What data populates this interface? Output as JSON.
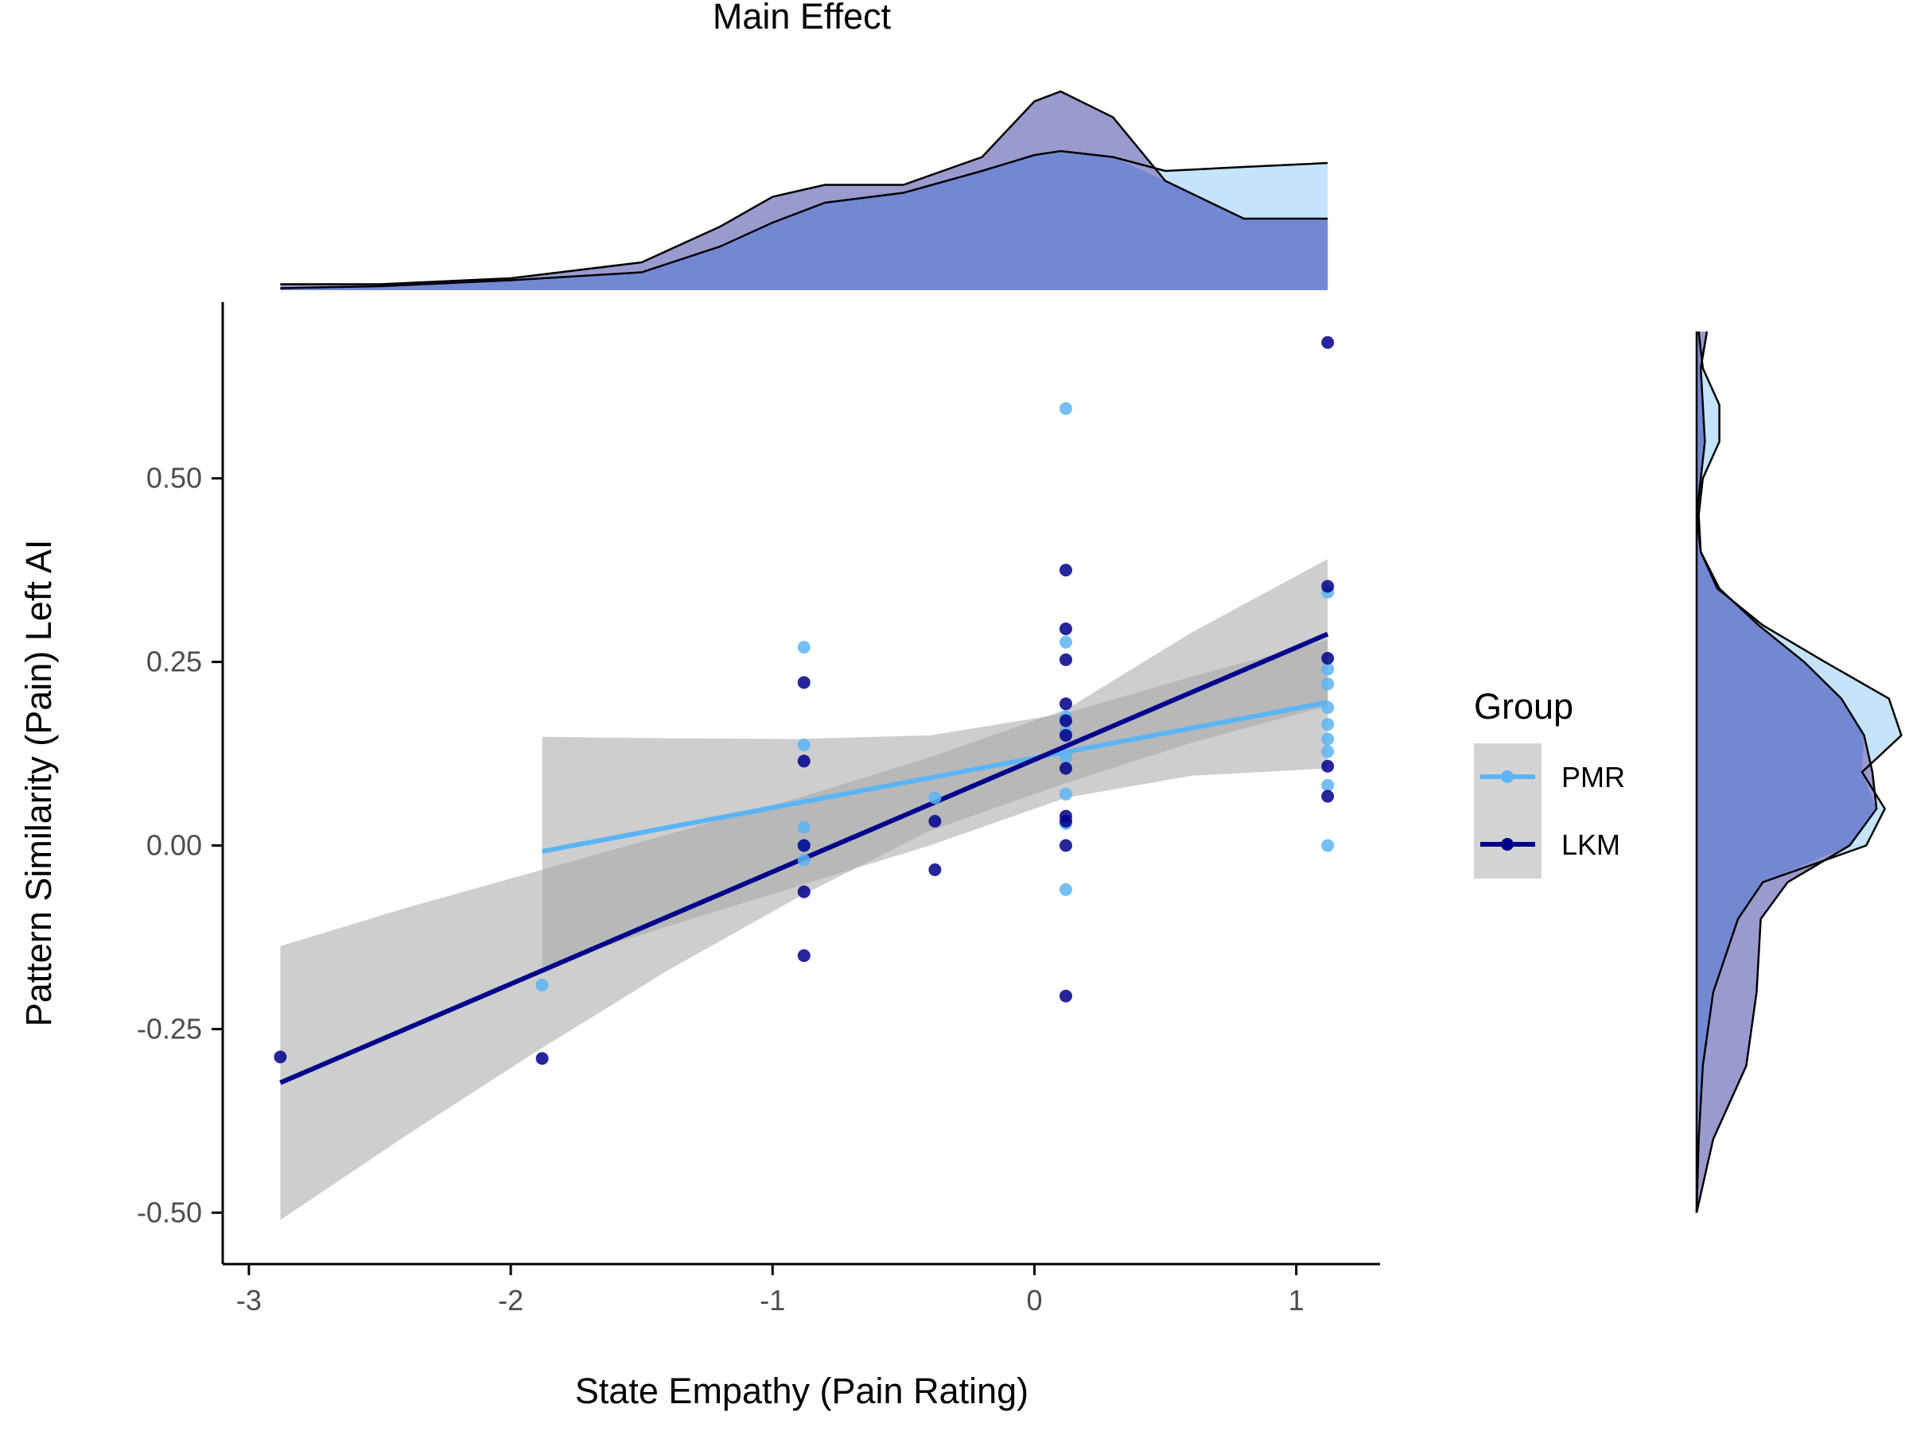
{
  "chart_data": {
    "type": "scatter",
    "title": "Main Effect",
    "xlabel": "State Empathy (Pain Rating)",
    "ylabel": "Pattern Similarity (Pain) Left AI",
    "xlim": [
      -3.1,
      1.32
    ],
    "ylim": [
      -0.57,
      0.74
    ],
    "xticks": [
      -3,
      -2,
      -1,
      0,
      1
    ],
    "xtick_labels": [
      "-3",
      "-2",
      "-1",
      "0",
      "1"
    ],
    "yticks": [
      -0.5,
      -0.25,
      0,
      0.25,
      0.5
    ],
    "ytick_labels": [
      "-0.50",
      "-0.25",
      "0.00",
      "0.25",
      "0.50"
    ],
    "grid": false,
    "legend": {
      "title": "Group",
      "placement": "right",
      "entries": [
        {
          "name": "PMR",
          "color": "#5BB4F5"
        },
        {
          "name": "LKM",
          "color": "#00008B"
        }
      ]
    },
    "series": [
      {
        "name": "PMR",
        "color": "#5BB4F5",
        "points": [
          [
            -1.88,
            -0.19
          ],
          [
            -0.88,
            0.27
          ],
          [
            -0.88,
            0.137
          ],
          [
            -0.88,
            0.025
          ],
          [
            -0.88,
            0.0
          ],
          [
            -0.88,
            -0.02
          ],
          [
            -0.38,
            0.065
          ],
          [
            0.12,
            0.595
          ],
          [
            0.12,
            0.277
          ],
          [
            0.12,
            0.175
          ],
          [
            0.12,
            0.155
          ],
          [
            0.12,
            0.12
          ],
          [
            0.12,
            0.07
          ],
          [
            0.12,
            0.03
          ],
          [
            0.12,
            -0.06
          ],
          [
            1.12,
            0.345
          ],
          [
            1.12,
            0.24
          ],
          [
            1.12,
            0.22
          ],
          [
            1.12,
            0.188
          ],
          [
            1.12,
            0.165
          ],
          [
            1.12,
            0.145
          ],
          [
            1.12,
            0.128
          ],
          [
            1.12,
            0.082
          ],
          [
            1.12,
            0.0
          ]
        ],
        "fit": {
          "x": [
            -1.88,
            1.12
          ],
          "y": [
            -0.008,
            0.195
          ]
        },
        "ribbon": {
          "x": [
            -1.88,
            -1.4,
            -0.9,
            -0.4,
            0.12,
            0.6,
            1.12
          ],
          "lower": [
            -0.165,
            -0.11,
            -0.055,
            0.0,
            0.065,
            0.095,
            0.105
          ],
          "upper": [
            0.148,
            0.146,
            0.145,
            0.15,
            0.18,
            0.23,
            0.28
          ]
        }
      },
      {
        "name": "LKM",
        "color": "#00008B",
        "points": [
          [
            -2.88,
            -0.288
          ],
          [
            -1.88,
            -0.29
          ],
          [
            -0.88,
            0.222
          ],
          [
            -0.88,
            0.115
          ],
          [
            -0.88,
            0.0
          ],
          [
            -0.88,
            -0.063
          ],
          [
            -0.88,
            -0.15
          ],
          [
            -0.38,
            0.033
          ],
          [
            -0.38,
            -0.033
          ],
          [
            0.12,
            0.375
          ],
          [
            0.12,
            0.295
          ],
          [
            0.12,
            0.253
          ],
          [
            0.12,
            0.193
          ],
          [
            0.12,
            0.17
          ],
          [
            0.12,
            0.15
          ],
          [
            0.12,
            0.105
          ],
          [
            0.12,
            0.04
          ],
          [
            0.12,
            0.033
          ],
          [
            0.12,
            0.0
          ],
          [
            0.12,
            -0.205
          ],
          [
            1.12,
            0.685
          ],
          [
            1.12,
            0.353
          ],
          [
            1.12,
            0.255
          ],
          [
            1.12,
            0.108
          ],
          [
            1.12,
            0.067
          ]
        ],
        "fit": {
          "x": [
            -2.88,
            1.12
          ],
          "y": [
            -0.323,
            0.288
          ]
        },
        "ribbon": {
          "x": [
            -2.88,
            -2.4,
            -1.9,
            -1.4,
            -0.9,
            -0.4,
            0.12,
            0.6,
            1.12
          ],
          "lower": [
            -0.51,
            -0.395,
            -0.28,
            -0.17,
            -0.07,
            0.02,
            0.085,
            0.14,
            0.19
          ],
          "upper": [
            -0.137,
            -0.085,
            -0.035,
            0.015,
            0.065,
            0.12,
            0.185,
            0.29,
            0.39
          ]
        }
      }
    ],
    "marginal_x_density": {
      "x": [
        -2.88,
        -2.5,
        -2.0,
        -1.5,
        -1.2,
        -1.0,
        -0.8,
        -0.5,
        -0.2,
        0.0,
        0.1,
        0.3,
        0.5,
        0.8,
        1.12
      ],
      "PMR": [
        0.01,
        0.02,
        0.05,
        0.09,
        0.22,
        0.34,
        0.44,
        0.49,
        0.6,
        0.68,
        0.7,
        0.67,
        0.6,
        0.62,
        0.64
      ],
      "LKM": [
        0.03,
        0.03,
        0.06,
        0.14,
        0.32,
        0.47,
        0.53,
        0.53,
        0.67,
        0.95,
        1.0,
        0.87,
        0.55,
        0.36,
        0.36
      ]
    },
    "marginal_y_density": {
      "y": [
        -0.5,
        -0.4,
        -0.3,
        -0.2,
        -0.1,
        -0.05,
        0.0,
        0.05,
        0.1,
        0.15,
        0.2,
        0.25,
        0.3,
        0.35,
        0.4,
        0.45,
        0.5,
        0.55,
        0.6,
        0.65,
        0.7
      ],
      "PMR": [
        0.0,
        0.01,
        0.03,
        0.08,
        0.2,
        0.32,
        0.82,
        0.91,
        0.8,
        0.99,
        0.93,
        0.62,
        0.32,
        0.1,
        0.02,
        0.01,
        0.03,
        0.11,
        0.11,
        0.03,
        0.01
      ],
      "LKM": [
        0.0,
        0.08,
        0.24,
        0.29,
        0.31,
        0.44,
        0.74,
        0.87,
        0.85,
        0.81,
        0.7,
        0.52,
        0.3,
        0.11,
        0.02,
        0.0,
        0.02,
        0.04,
        0.03,
        0.02,
        0.05
      ]
    },
    "density_colors": {
      "PMR": "#C5E4FB",
      "LKM": "#9A9ACF",
      "overlap": "#7388D3"
    }
  }
}
